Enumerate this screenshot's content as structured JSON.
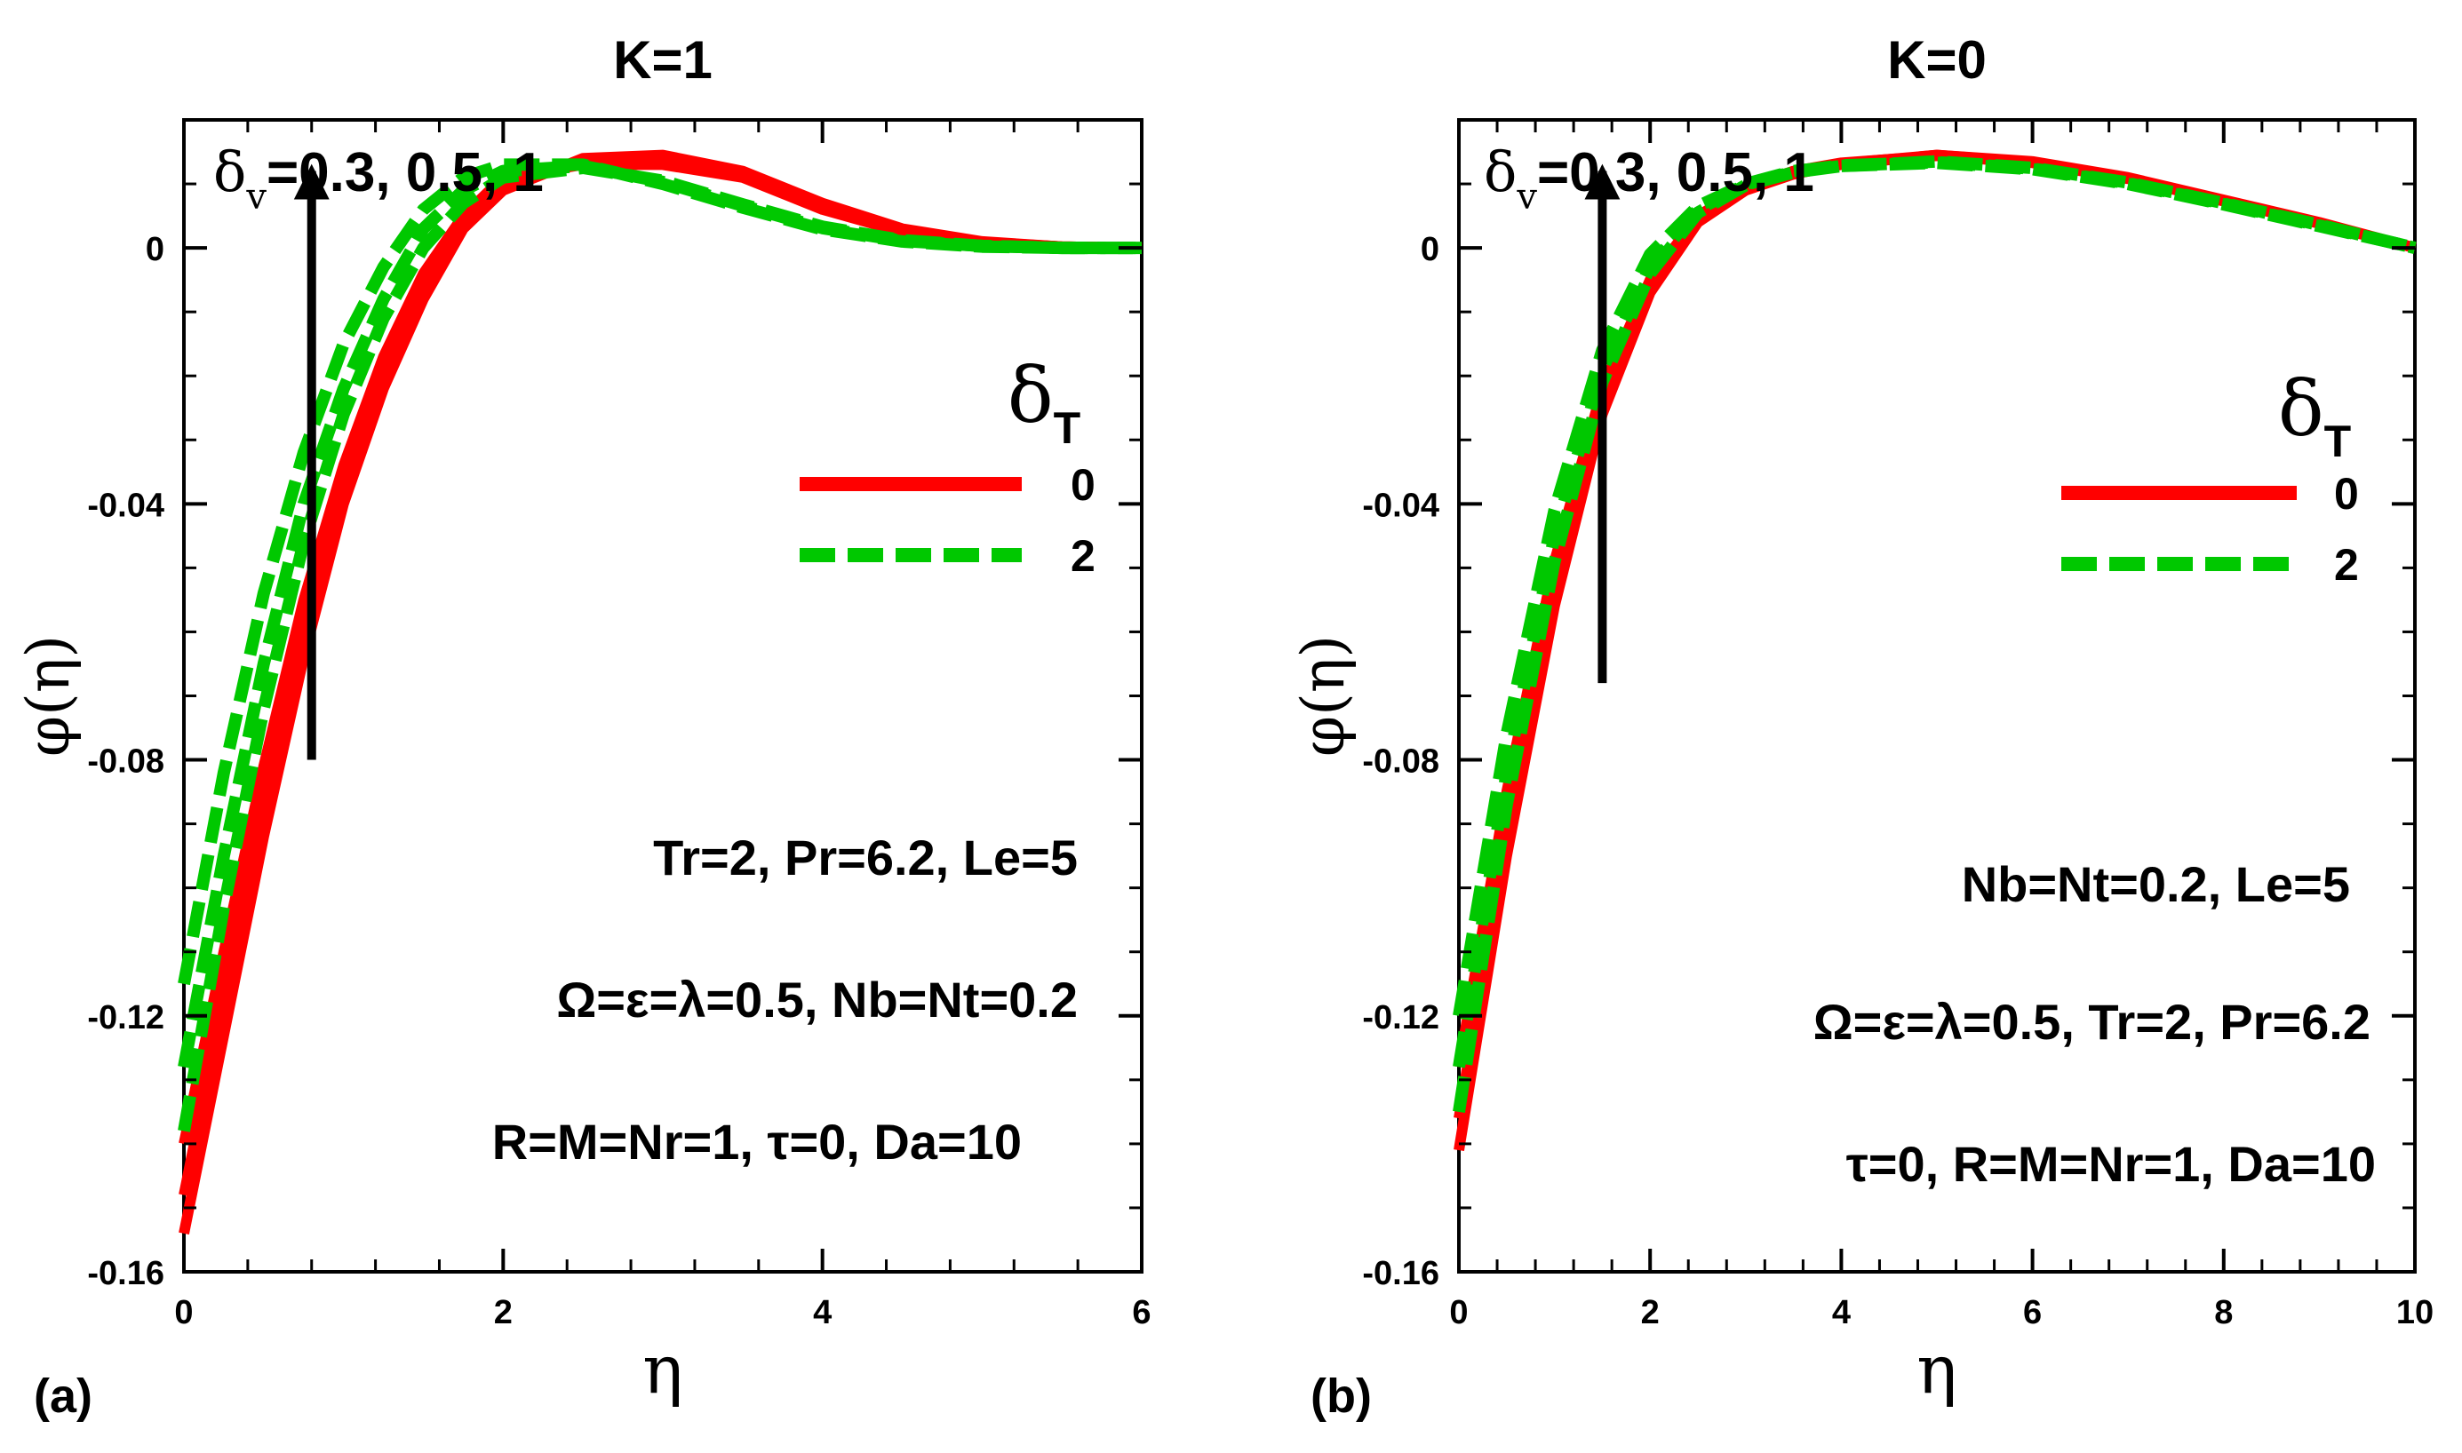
{
  "chart_data": [
    {
      "type": "line",
      "panel_label": "(a)",
      "title": "K=1",
      "xlabel": "η",
      "ylabel": "φ(η)",
      "xlim": [
        0,
        6
      ],
      "ylim": [
        -0.16,
        0.02
      ],
      "xticks": [
        0,
        2,
        4,
        6
      ],
      "yticks": [
        0,
        -0.04,
        -0.08,
        -0.12,
        -0.16
      ],
      "xtick_labels": [
        "0",
        "2",
        "4",
        "6"
      ],
      "ytick_labels": [
        "0",
        "-0.04",
        "-0.08",
        "-0.12",
        "-0.16"
      ],
      "legend_title": "δ",
      "legend_title_sub": "T",
      "legend": [
        {
          "label": "0",
          "color": "#ff0000",
          "dash": "solid"
        },
        {
          "label": "2",
          "color": "#00c800",
          "dash": "dashed"
        }
      ],
      "arrow_label_main": "δ",
      "arrow_label_sub": "v",
      "arrow_label_rest": "=0.3, 0.5, 1",
      "annotations": [
        "Tr=2, Pr=6.2, Le=5",
        "Ω=ε=λ=0.5, Nb=Nt=0.2",
        "R=M=Nr=1, τ=0,  Da=10"
      ],
      "series": [
        {
          "name": "δT=0, δv=0.3",
          "color": "#ff0000",
          "dash": "solid",
          "x": [
            0,
            0.25,
            0.5,
            0.75,
            1.0,
            1.25,
            1.5,
            1.75,
            2.0,
            2.5,
            3.0,
            3.5,
            4.0,
            4.5,
            5.0,
            5.5,
            6.0
          ],
          "y": [
            -0.154,
            -0.123,
            -0.092,
            -0.064,
            -0.04,
            -0.022,
            -0.008,
            0.003,
            0.009,
            0.014,
            0.0145,
            0.012,
            0.007,
            0.003,
            0.001,
            0.0002,
            0.0
          ]
        },
        {
          "name": "δT=0, δv=0.5",
          "color": "#ff0000",
          "dash": "solid",
          "x": [
            0,
            0.25,
            0.5,
            0.75,
            1.0,
            1.25,
            1.5,
            1.75,
            2.0,
            2.5,
            3.0,
            3.5,
            4.0,
            4.5,
            5.0,
            5.5,
            6.0
          ],
          "y": [
            -0.148,
            -0.117,
            -0.087,
            -0.06,
            -0.037,
            -0.019,
            -0.006,
            0.004,
            0.01,
            0.0135,
            0.0138,
            0.0115,
            0.0065,
            0.0028,
            0.0009,
            0.0002,
            0.0
          ]
        },
        {
          "name": "δT=0, δv=1",
          "color": "#ff0000",
          "dash": "solid",
          "x": [
            0,
            0.25,
            0.5,
            0.75,
            1.0,
            1.25,
            1.5,
            1.75,
            2.0,
            2.5,
            3.0,
            3.5,
            4.0,
            4.5,
            5.0,
            5.5,
            6.0
          ],
          "y": [
            -0.14,
            -0.11,
            -0.081,
            -0.055,
            -0.034,
            -0.017,
            -0.004,
            0.005,
            0.011,
            0.013,
            0.013,
            0.011,
            0.006,
            0.0025,
            0.0008,
            0.0002,
            0.0
          ]
        },
        {
          "name": "δT=2, δv=0.3",
          "color": "#00c800",
          "dash": "dashed",
          "x": [
            0,
            0.25,
            0.5,
            0.75,
            1.0,
            1.25,
            1.5,
            1.75,
            2.0,
            2.5,
            3.0,
            3.5,
            4.0,
            4.5,
            5.0,
            5.5,
            6.0
          ],
          "y": [
            -0.138,
            -0.103,
            -0.072,
            -0.046,
            -0.026,
            -0.011,
            0.0,
            0.007,
            0.011,
            0.0125,
            0.0105,
            0.0068,
            0.0033,
            0.0012,
            0.0003,
            0.0,
            0.0
          ]
        },
        {
          "name": "δT=2, δv=0.5",
          "color": "#00c800",
          "dash": "dashed",
          "x": [
            0,
            0.25,
            0.5,
            0.75,
            1.0,
            1.25,
            1.5,
            1.75,
            2.0,
            2.5,
            3.0,
            3.5,
            4.0,
            4.5,
            5.0,
            5.5,
            6.0
          ],
          "y": [
            -0.128,
            -0.095,
            -0.065,
            -0.04,
            -0.022,
            -0.008,
            0.003,
            0.009,
            0.012,
            0.0128,
            0.0103,
            0.0066,
            0.0031,
            0.0011,
            0.0003,
            0.0,
            0.0
          ]
        },
        {
          "name": "δT=2, δv=1",
          "color": "#00c800",
          "dash": "dashed",
          "x": [
            0,
            0.25,
            0.5,
            0.75,
            1.0,
            1.25,
            1.5,
            1.75,
            2.0,
            2.5,
            3.0,
            3.5,
            4.0,
            4.5,
            5.0,
            5.5,
            6.0
          ],
          "y": [
            -0.115,
            -0.082,
            -0.054,
            -0.032,
            -0.015,
            -0.003,
            0.006,
            0.011,
            0.013,
            0.013,
            0.01,
            0.0063,
            0.0029,
            0.001,
            0.0002,
            0.0,
            0.0
          ]
        }
      ]
    },
    {
      "type": "line",
      "panel_label": "(b)",
      "title": "K=0",
      "xlabel": "η",
      "ylabel": "φ(η)",
      "xlim": [
        0,
        10
      ],
      "ylim": [
        -0.16,
        0.02
      ],
      "xticks": [
        0,
        2,
        4,
        6,
        8,
        10
      ],
      "yticks": [
        0,
        -0.04,
        -0.08,
        -0.12,
        -0.16
      ],
      "xtick_labels": [
        "0",
        "2",
        "4",
        "6",
        "8",
        "10"
      ],
      "ytick_labels": [
        "0",
        "-0.04",
        "-0.08",
        "-0.12",
        "-0.16"
      ],
      "legend_title": "δ",
      "legend_title_sub": "T",
      "legend": [
        {
          "label": "0",
          "color": "#ff0000",
          "dash": "solid"
        },
        {
          "label": "2",
          "color": "#00c800",
          "dash": "dashed"
        }
      ],
      "arrow_label_main": "δ",
      "arrow_label_sub": "v",
      "arrow_label_rest": "=0.3, 0.5, 1",
      "annotations": [
        "Nb=Nt=0.2, Le=5",
        "Ω=ε=λ=0.5, Tr=2, Pr=6.2",
        "τ=0, R=M=Nr=1, Da=10"
      ],
      "series": [
        {
          "name": "δT=0, δv=0.3",
          "color": "#ff0000",
          "dash": "solid",
          "x": [
            0,
            0.5,
            1.0,
            1.5,
            2.0,
            2.5,
            3.0,
            3.5,
            4.0,
            5.0,
            6.0,
            7.0,
            8.0,
            9.0,
            10.0
          ],
          "y": [
            -0.141,
            -0.095,
            -0.056,
            -0.026,
            -0.007,
            0.004,
            0.009,
            0.0115,
            0.013,
            0.0145,
            0.0135,
            0.011,
            0.0075,
            0.004,
            0.0
          ]
        },
        {
          "name": "δT=0, δv=0.5",
          "color": "#ff0000",
          "dash": "solid",
          "x": [
            0,
            0.5,
            1.0,
            1.5,
            2.0,
            2.5,
            3.0,
            3.5,
            4.0,
            5.0,
            6.0,
            7.0,
            8.0,
            9.0,
            10.0
          ],
          "y": [
            -0.136,
            -0.091,
            -0.053,
            -0.024,
            -0.006,
            0.0045,
            0.0093,
            0.0117,
            0.0132,
            0.0145,
            0.0134,
            0.0109,
            0.0074,
            0.0039,
            0.0
          ]
        },
        {
          "name": "δT=0, δv=1",
          "color": "#ff0000",
          "dash": "solid",
          "x": [
            0,
            0.5,
            1.0,
            1.5,
            2.0,
            2.5,
            3.0,
            3.5,
            4.0,
            5.0,
            6.0,
            7.0,
            8.0,
            9.0,
            10.0
          ],
          "y": [
            -0.128,
            -0.085,
            -0.049,
            -0.022,
            -0.005,
            0.005,
            0.0095,
            0.012,
            0.0133,
            0.0144,
            0.0133,
            0.0108,
            0.0073,
            0.0038,
            0.0
          ]
        },
        {
          "name": "δT=2, δv=0.3",
          "color": "#00c800",
          "dash": "dashed",
          "x": [
            0,
            0.5,
            1.0,
            1.5,
            2.0,
            2.5,
            3.0,
            3.5,
            4.0,
            5.0,
            6.0,
            7.0,
            8.0,
            9.0,
            10.0
          ],
          "y": [
            -0.135,
            -0.087,
            -0.049,
            -0.021,
            -0.004,
            0.0055,
            0.0098,
            0.0118,
            0.0128,
            0.0135,
            0.0125,
            0.0102,
            0.007,
            0.0036,
            0.0
          ]
        },
        {
          "name": "δT=2, δv=0.5",
          "color": "#00c800",
          "dash": "dashed",
          "x": [
            0,
            0.5,
            1.0,
            1.5,
            2.0,
            2.5,
            3.0,
            3.5,
            4.0,
            5.0,
            6.0,
            7.0,
            8.0,
            9.0,
            10.0
          ],
          "y": [
            -0.128,
            -0.082,
            -0.045,
            -0.019,
            -0.003,
            0.006,
            0.0099,
            0.0119,
            0.0129,
            0.0134,
            0.0124,
            0.0101,
            0.0069,
            0.0035,
            0.0
          ]
        },
        {
          "name": "δT=2, δv=1",
          "color": "#00c800",
          "dash": "dashed",
          "x": [
            0,
            0.5,
            1.0,
            1.5,
            2.0,
            2.5,
            3.0,
            3.5,
            4.0,
            5.0,
            6.0,
            7.0,
            8.0,
            9.0,
            10.0
          ],
          "y": [
            -0.12,
            -0.076,
            -0.041,
            -0.016,
            -0.001,
            0.0065,
            0.01,
            0.012,
            0.0128,
            0.0133,
            0.0123,
            0.01,
            0.0068,
            0.0034,
            0.0
          ]
        }
      ]
    }
  ]
}
